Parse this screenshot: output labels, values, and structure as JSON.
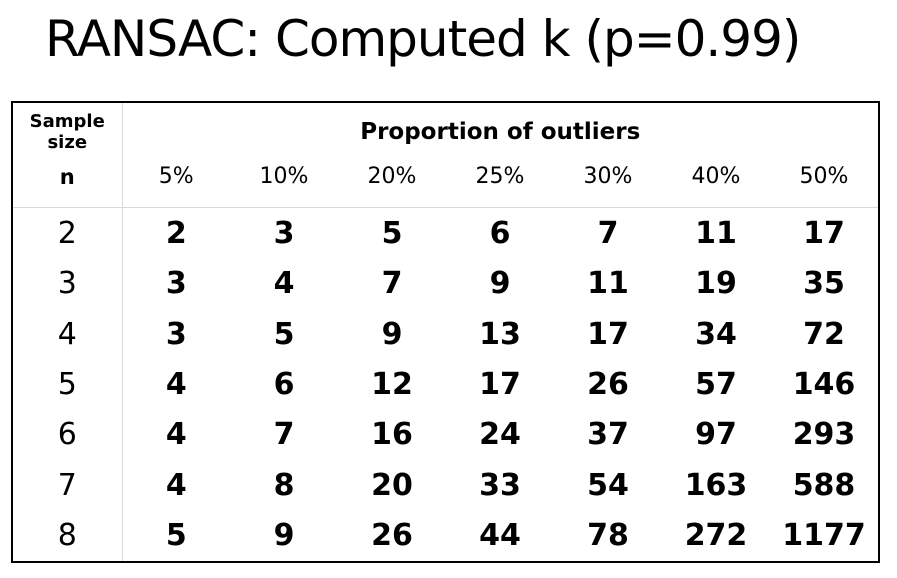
{
  "title": "RANSAC: Computed k (p=0.99)",
  "table": {
    "sample_size_label": "Sample\nsize",
    "n_label": "n",
    "group_header": "Proportion of outliers",
    "columns": [
      "5%",
      "10%",
      "20%",
      "25%",
      "30%",
      "40%",
      "50%"
    ],
    "rows": [
      {
        "n": "2",
        "values": [
          "2",
          "3",
          "5",
          "6",
          "7",
          "11",
          "17"
        ]
      },
      {
        "n": "3",
        "values": [
          "3",
          "4",
          "7",
          "9",
          "11",
          "19",
          "35"
        ]
      },
      {
        "n": "4",
        "values": [
          "3",
          "5",
          "9",
          "13",
          "17",
          "34",
          "72"
        ]
      },
      {
        "n": "5",
        "values": [
          "4",
          "6",
          "12",
          "17",
          "26",
          "57",
          "146"
        ]
      },
      {
        "n": "6",
        "values": [
          "4",
          "7",
          "16",
          "24",
          "37",
          "97",
          "293"
        ]
      },
      {
        "n": "7",
        "values": [
          "4",
          "8",
          "20",
          "33",
          "54",
          "163",
          "588"
        ]
      },
      {
        "n": "8",
        "values": [
          "5",
          "9",
          "26",
          "44",
          "78",
          "272",
          "1177"
        ]
      }
    ]
  }
}
